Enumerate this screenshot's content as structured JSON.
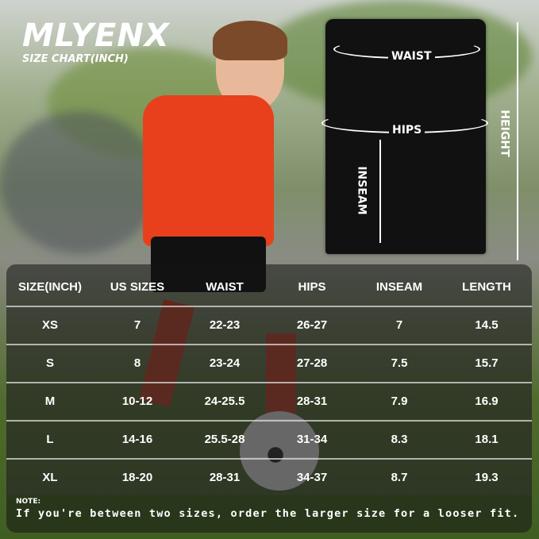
{
  "brand": "MLYENX",
  "subtitle": "SIZE CHART(INCH)",
  "measure_labels": {
    "waist": "WAIST",
    "hips": "HIPS",
    "inseam": "INSEAM",
    "height": "HEIGHT"
  },
  "table": {
    "headers": [
      "SIZE(INCH)",
      "US SIZES",
      "WAIST",
      "HIPS",
      "INSEAM",
      "LENGTH"
    ],
    "rows": [
      [
        "XS",
        "7",
        "22-23",
        "26-27",
        "7",
        "14.5"
      ],
      [
        "S",
        "8",
        "23-24",
        "27-28",
        "7.5",
        "15.7"
      ],
      [
        "M",
        "10-12",
        "24-25.5",
        "28-31",
        "7.9",
        "16.9"
      ],
      [
        "L",
        "14-16",
        "25.5-28",
        "31-34",
        "8.3",
        "18.1"
      ],
      [
        "XL",
        "18-20",
        "28-31",
        "34-37",
        "8.7",
        "19.3"
      ]
    ]
  },
  "note": {
    "label": "NOTE:",
    "text": "If you're between two sizes, order the larger size for a looser fit."
  },
  "colors": {
    "shirt": "#e8401c",
    "shorts": "#111111",
    "grass": "#4a6a26"
  }
}
